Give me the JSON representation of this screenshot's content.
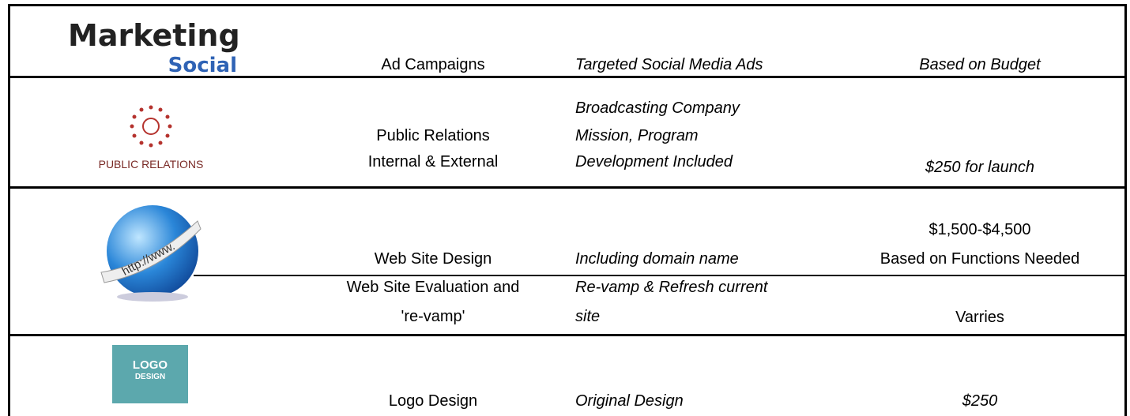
{
  "icons": {
    "marketing": [
      "Marketing",
      "Social"
    ],
    "public_relations": "PUBLIC RELATIONS",
    "web": "http://www.",
    "logo": [
      "LOGO",
      "DESIGN"
    ]
  },
  "rows": [
    {
      "service": [
        "Ad Campaigns"
      ],
      "description": [
        "Targeted Social Media Ads"
      ],
      "price": [
        "Based on Budget"
      ]
    },
    {
      "service": [
        "Public Relations",
        "Internal & External"
      ],
      "description": [
        "Broadcasting Company",
        "Mission, Program",
        "Development Included"
      ],
      "price": [
        "$250 for launch"
      ]
    },
    {
      "service": [
        "Web Site Design"
      ],
      "description": [
        "Including domain name"
      ],
      "price": [
        "$1,500-$4,500",
        "Based on Functions Needed"
      ]
    },
    {
      "service": [
        "Web Site Evaluation and",
        "'re-vamp'"
      ],
      "description": [
        "Re-vamp & Refresh current",
        "site"
      ],
      "price": [
        "Varries"
      ]
    },
    {
      "service": [
        "Logo Design"
      ],
      "description": [
        "Original Design"
      ],
      "price": [
        "$250"
      ]
    }
  ]
}
